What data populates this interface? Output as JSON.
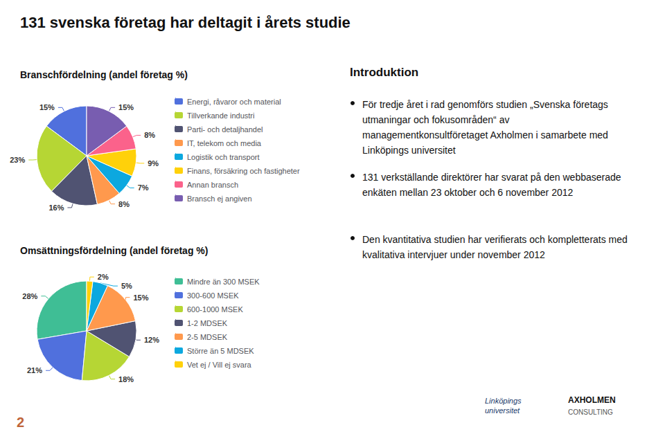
{
  "title": "131 svenska företag har deltagit i årets studie",
  "annotations": [
    "Introduktion",
    "För tredje året i rad genomförs studien „Svenska företags utmaningar och fokusområden“ av managementkonsultföretaget Axholmen i samarbete med Linköpings universitet",
    "131 verkställande direktörer har svarat på den webbaserade enkäten mellan 23 oktober och 6 november 2012",
    "Den kvantitativa studien har verifierats och kompletterats med kvalitativa intervjuer under november 2012",
    "2",
    "Linköpings\nuniversitet",
    "AXHOLMEN",
    "CONSULTING"
  ],
  "chart_data": [
    {
      "type": "pie",
      "title": "Branschfördelning (andel företag %)",
      "categories": [
        "Energi, råvaror och material",
        "Tillverkande industri",
        "Parti- och detaljhandel",
        "IT, telekom och media",
        "Logistik och transport",
        "Finans, försäkring och fastigheter",
        "Annan bransch",
        "Bransch ej angiven"
      ],
      "values": [
        15,
        23,
        16,
        8,
        7,
        9,
        8,
        15
      ],
      "value_labels": [
        "15%",
        "23%",
        "16%",
        "8%",
        "7%",
        "9%",
        "8%",
        "15%"
      ],
      "data_labels": true,
      "legend": "right"
    },
    {
      "type": "pie",
      "title": "Omsättningsfördelning (andel företag %)",
      "categories": [
        "Mindre än 300 MSEK",
        "300-600 MSEK",
        "600-1000 MSEK",
        "1-2 MDSEK",
        "2-5 MDSEK",
        "Större än 5 MDSEK",
        "Vet ej / Vill ej svara"
      ],
      "values": [
        28,
        21,
        18,
        12,
        15,
        5,
        2
      ],
      "value_labels": [
        "28%",
        "21%",
        "18%",
        "12%",
        "15%",
        "5%",
        "2%"
      ],
      "data_labels": true,
      "legend": "right"
    }
  ]
}
